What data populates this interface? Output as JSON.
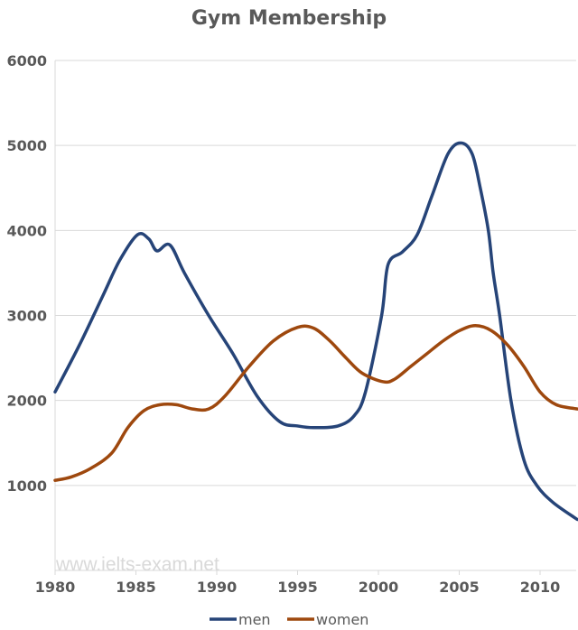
{
  "chart_data": {
    "type": "line",
    "title": "Gym Membership",
    "xlabel": "",
    "ylabel": "",
    "xlim": [
      1980,
      2012.3
    ],
    "ylim": [
      0,
      6000
    ],
    "x_ticks": [
      "1980",
      "1985",
      "1990",
      "1995",
      "2000",
      "2005",
      "2010"
    ],
    "y_ticks": [
      "1000",
      "2000",
      "3000",
      "4000",
      "5000",
      "6000"
    ],
    "grid": true,
    "legend_position": "bottom",
    "watermark": "www.ielts-exam.net",
    "series": [
      {
        "name": "men",
        "color": "#264478",
        "points": [
          [
            1980,
            2100
          ],
          [
            1981.5,
            2650
          ],
          [
            1983,
            3250
          ],
          [
            1984,
            3650
          ],
          [
            1985.1,
            3950
          ],
          [
            1985.8,
            3900
          ],
          [
            1986.3,
            3760
          ],
          [
            1987.1,
            3830
          ],
          [
            1988,
            3500
          ],
          [
            1989.5,
            3000
          ],
          [
            1991,
            2550
          ],
          [
            1992.5,
            2050
          ],
          [
            1993.9,
            1750
          ],
          [
            1995,
            1700
          ],
          [
            1996,
            1680
          ],
          [
            1997.5,
            1700
          ],
          [
            1998.5,
            1820
          ],
          [
            1999.2,
            2100
          ],
          [
            2000.2,
            3000
          ],
          [
            2000.6,
            3600
          ],
          [
            2001.5,
            3750
          ],
          [
            2002.4,
            3950
          ],
          [
            2003.3,
            4400
          ],
          [
            2004.3,
            4900
          ],
          [
            2005.1,
            5030
          ],
          [
            2005.8,
            4900
          ],
          [
            2006.3,
            4500
          ],
          [
            2006.8,
            4000
          ],
          [
            2007.1,
            3500
          ],
          [
            2007.5,
            3000
          ],
          [
            2008.2,
            2000
          ],
          [
            2009,
            1300
          ],
          [
            2009.8,
            1000
          ],
          [
            2010.8,
            800
          ],
          [
            2012.3,
            600
          ]
        ]
      },
      {
        "name": "women",
        "color": "#9E480E",
        "points": [
          [
            1980,
            1060
          ],
          [
            1981,
            1100
          ],
          [
            1982.2,
            1200
          ],
          [
            1983.5,
            1380
          ],
          [
            1984.5,
            1680
          ],
          [
            1985.5,
            1880
          ],
          [
            1986.5,
            1950
          ],
          [
            1987.5,
            1950
          ],
          [
            1988.5,
            1900
          ],
          [
            1989.5,
            1900
          ],
          [
            1990.5,
            2050
          ],
          [
            1992,
            2400
          ],
          [
            1993.5,
            2700
          ],
          [
            1995,
            2860
          ],
          [
            1996,
            2850
          ],
          [
            1997,
            2700
          ],
          [
            1998,
            2500
          ],
          [
            1999,
            2320
          ],
          [
            2000.3,
            2220
          ],
          [
            2001,
            2250
          ],
          [
            2002,
            2400
          ],
          [
            2003,
            2550
          ],
          [
            2004,
            2700
          ],
          [
            2005,
            2820
          ],
          [
            2006,
            2880
          ],
          [
            2007,
            2820
          ],
          [
            2008,
            2650
          ],
          [
            2009,
            2400
          ],
          [
            2010,
            2100
          ],
          [
            2011,
            1950
          ],
          [
            2012.3,
            1900
          ]
        ]
      }
    ]
  }
}
